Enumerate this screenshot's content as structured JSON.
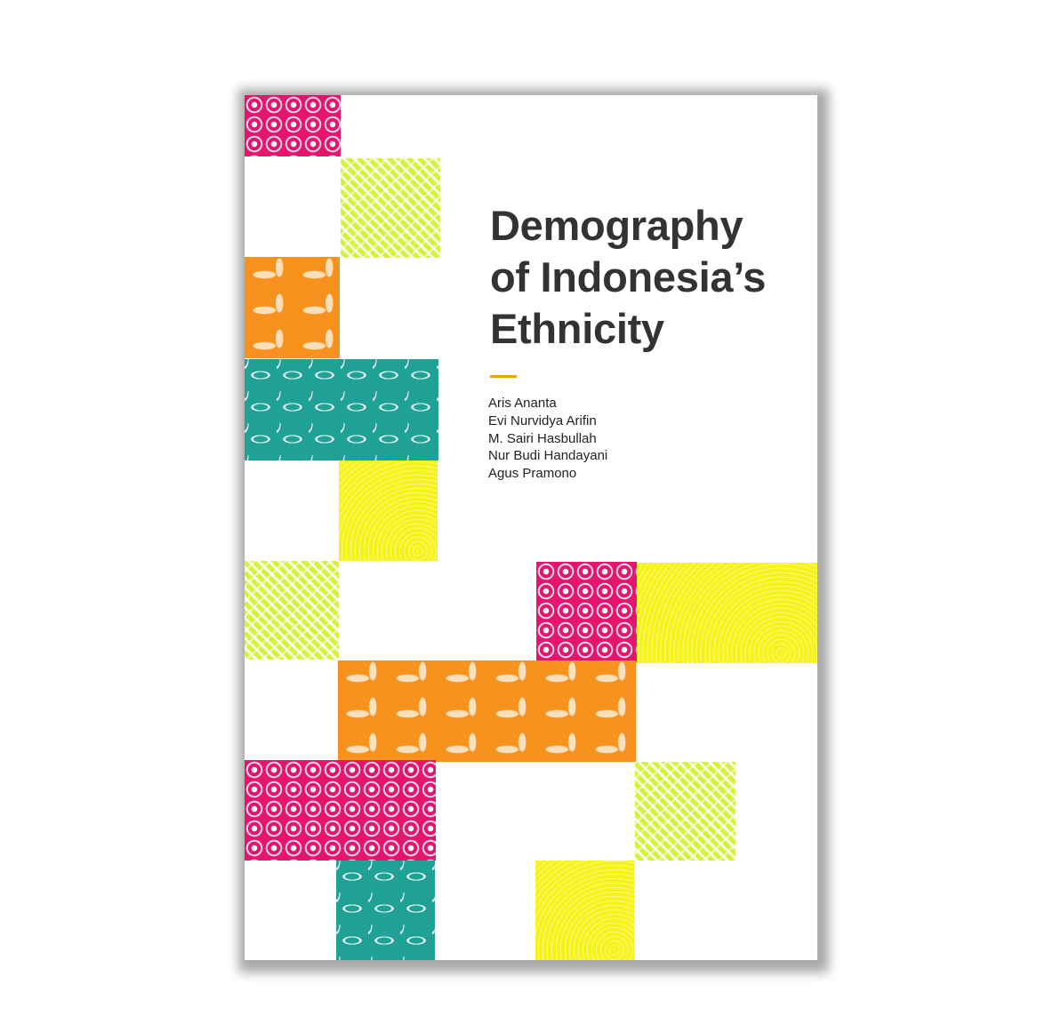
{
  "book": {
    "title_lines": [
      "Demography",
      "of Indonesia’s",
      "Ethnicity"
    ],
    "authors": [
      "Aris Ananta",
      "Evi Nurvidya Arifin",
      "M. Sairi Hasbullah",
      "Nur Budi Handayani",
      "Agus Pramono"
    ]
  },
  "colors": {
    "pink": "#e5146e",
    "lime": "#d6f23c",
    "orange": "#f7921e",
    "teal": "#1fa196",
    "yellow": "#f6f21c",
    "title_text": "#333333",
    "accent_rule": "#f0a400"
  }
}
